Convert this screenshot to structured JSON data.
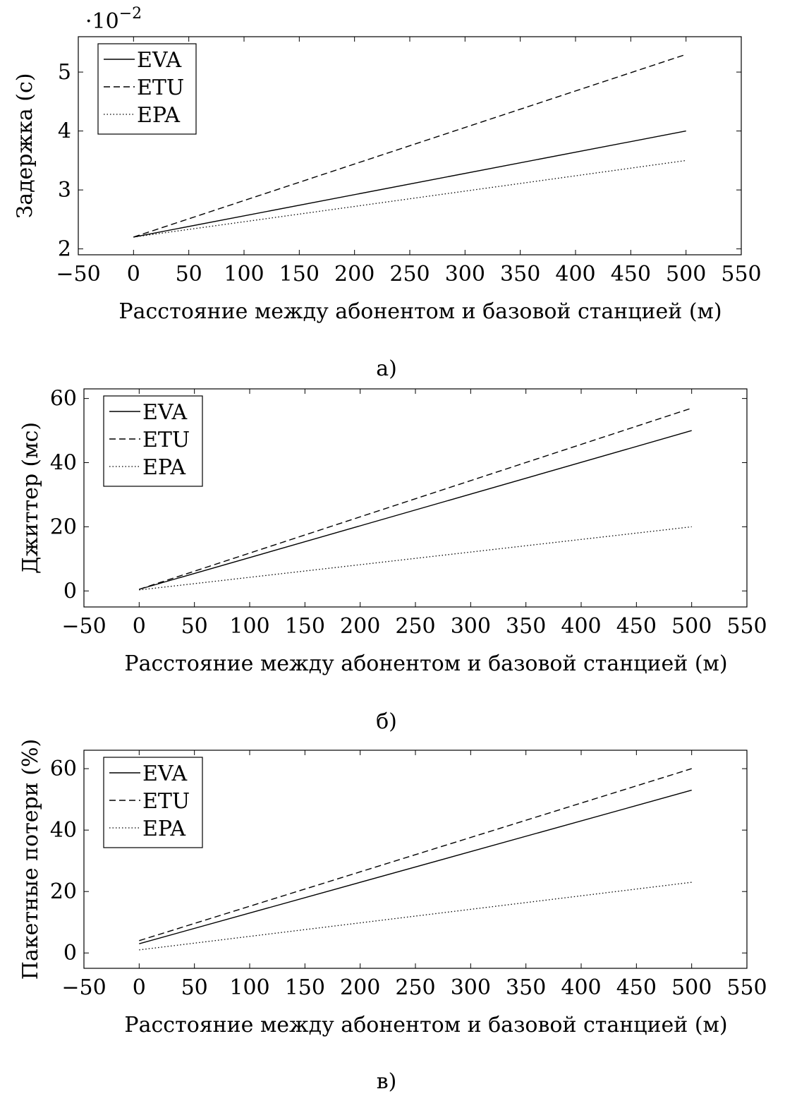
{
  "chart_data": [
    {
      "type": "line",
      "x": [
        0,
        500
      ],
      "xlim": [
        -50,
        550
      ],
      "ylim": [
        1.9,
        5.6
      ],
      "xticks": [
        -50,
        0,
        50,
        100,
        150,
        200,
        250,
        300,
        350,
        400,
        450,
        500,
        550
      ],
      "xtick_labels": [
        "−50",
        "0",
        "50",
        "100",
        "150",
        "200",
        "250",
        "300",
        "350",
        "400",
        "450",
        "500",
        "550"
      ],
      "yticks": [
        2,
        3,
        4,
        5
      ],
      "ytick_labels": [
        "2",
        "3",
        "4",
        "5"
      ],
      "scale_base": "·10",
      "scale_exp": "−2",
      "xlabel": "Расстояние между абонентом и базовой станцией (м)",
      "ylabel": "Задержка (с)",
      "caption": "а)",
      "legend": "top-left",
      "grid": false,
      "series": [
        {
          "name": "EVA",
          "style": "solid",
          "values": [
            2.2,
            4.0
          ]
        },
        {
          "name": "ETU",
          "style": "dashed",
          "values": [
            2.2,
            5.3
          ]
        },
        {
          "name": "EPA",
          "style": "dotted",
          "values": [
            2.2,
            3.5
          ]
        }
      ]
    },
    {
      "type": "line",
      "x": [
        0,
        500
      ],
      "xlim": [
        -50,
        550
      ],
      "ylim": [
        -5,
        63
      ],
      "xticks": [
        -50,
        0,
        50,
        100,
        150,
        200,
        250,
        300,
        350,
        400,
        450,
        500,
        550
      ],
      "xtick_labels": [
        "−50",
        "0",
        "50",
        "100",
        "150",
        "200",
        "250",
        "300",
        "350",
        "400",
        "450",
        "500",
        "550"
      ],
      "yticks": [
        0,
        20,
        40,
        60
      ],
      "ytick_labels": [
        "0",
        "20",
        "40",
        "60"
      ],
      "xlabel": "Расстояние между абонентом и базовой станцией (м)",
      "ylabel": "Джиттер (мс)",
      "caption": "б)",
      "legend": "top-left",
      "grid": false,
      "series": [
        {
          "name": "EVA",
          "style": "solid",
          "values": [
            0.5,
            50
          ]
        },
        {
          "name": "ETU",
          "style": "dashed",
          "values": [
            0.5,
            57
          ]
        },
        {
          "name": "EPA",
          "style": "dotted",
          "values": [
            0.3,
            20
          ]
        }
      ]
    },
    {
      "type": "line",
      "x": [
        0,
        500
      ],
      "xlim": [
        -50,
        550
      ],
      "ylim": [
        -5,
        66
      ],
      "xticks": [
        -50,
        0,
        50,
        100,
        150,
        200,
        250,
        300,
        350,
        400,
        450,
        500,
        550
      ],
      "xtick_labels": [
        "−50",
        "0",
        "50",
        "100",
        "150",
        "200",
        "250",
        "300",
        "350",
        "400",
        "450",
        "500",
        "550"
      ],
      "yticks": [
        0,
        20,
        40,
        60
      ],
      "ytick_labels": [
        "0",
        "20",
        "40",
        "60"
      ],
      "xlabel": "Расстояние между абонентом и базовой станцией (м)",
      "ylabel": "Пакетные потери (%)",
      "caption": "в)",
      "legend": "top-left",
      "grid": false,
      "series": [
        {
          "name": "EVA",
          "style": "solid",
          "values": [
            3,
            53
          ]
        },
        {
          "name": "ETU",
          "style": "dashed",
          "values": [
            4,
            60
          ]
        },
        {
          "name": "EPA",
          "style": "dotted",
          "values": [
            1,
            23
          ]
        }
      ]
    }
  ]
}
